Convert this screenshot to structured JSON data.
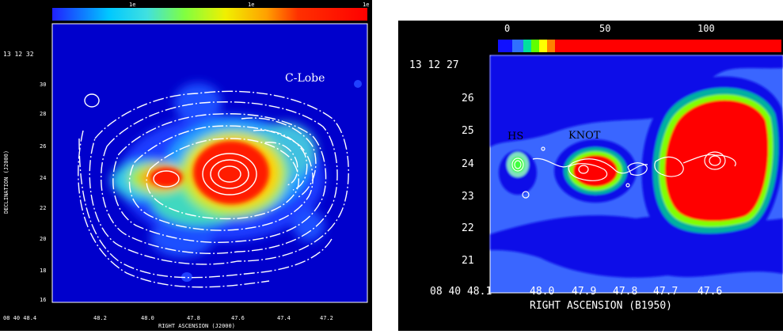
{
  "left_panel": {
    "colorbar_ticks": [
      "1e",
      "1e",
      "1e"
    ],
    "lobe_label": "C-Lobe",
    "dec_main": "13 12 32",
    "dec_ticks": [
      "30",
      "28",
      "26",
      "24",
      "22",
      "20",
      "18",
      "16"
    ],
    "ra_ticks": [
      "08 40 48.4",
      "48.2",
      "48.0",
      "47.8",
      "47.6",
      "47.4",
      "47.2"
    ],
    "ra_axis_label": "RIGHT ASCENSION (J2000)",
    "dec_axis_label": "DECLINATION (J2000)"
  },
  "right_panel": {
    "colorbar_ticks": [
      "0",
      "50",
      "100"
    ],
    "hs_label": "HS",
    "knot_label": "KNOT",
    "dec_main": "13 12 27",
    "dec_ticks": [
      "26",
      "25",
      "24",
      "23",
      "22",
      "21"
    ],
    "ra_ticks": [
      "08 40 48.1",
      "48.0",
      "47.9",
      "47.8",
      "47.7",
      "47.6"
    ],
    "ra_axis_label": "RIGHT ASCENSION (B1950)"
  }
}
